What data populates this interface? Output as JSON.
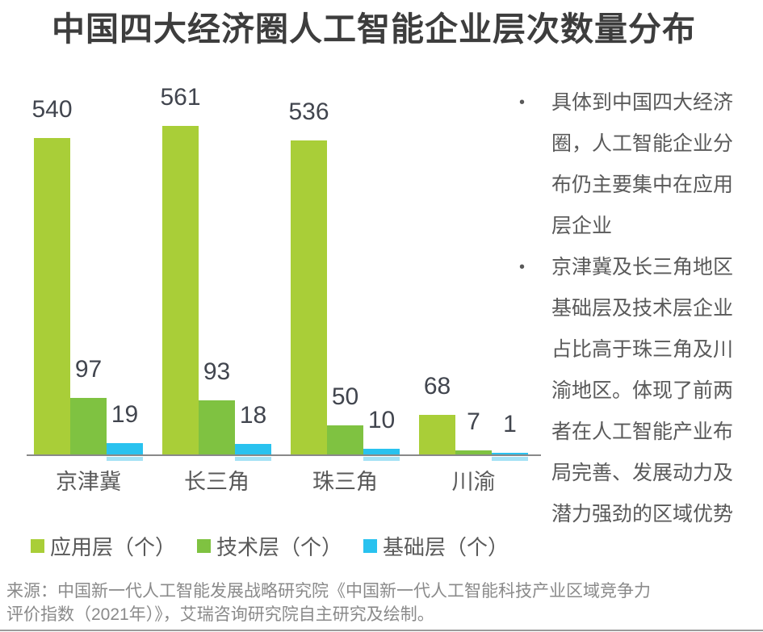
{
  "title": "中国四大经济圈人工智能企业层次数量分布",
  "chart_data": {
    "type": "bar",
    "title": "中国四大经济圈人工智能企业层次数量分布",
    "categories": [
      "京津冀",
      "长三角",
      "珠三角",
      "川渝"
    ],
    "series": [
      {
        "name": "应用层（个）",
        "color": "#a9ce38",
        "values": [
          540,
          561,
          536,
          68
        ]
      },
      {
        "name": "技术层（个）",
        "color": "#7fc241",
        "values": [
          97,
          93,
          50,
          7
        ]
      },
      {
        "name": "基础层（个）",
        "color": "#29c2ef",
        "values": [
          19,
          18,
          10,
          1
        ]
      }
    ],
    "xlabel": "",
    "ylabel": "",
    "ylim": [
      0,
      600
    ],
    "grid": false,
    "legend_position": "bottom",
    "value_labels": true,
    "axis_line_color": "#898989"
  },
  "notes": [
    "具体到中国四大经济圈，人工智能企业分布仍主要集中在应用层企业",
    "京津冀及长三角地区基础层及技术层企业占比高于珠三角及川渝地区。体现了前两者在人工智能产业布局完善、发展动力及潜力强劲的区域优势"
  ],
  "source_lines": [
    "来源：中国新一代人工智能发展战略研究院《中国新一代人工智能科技产业区域竞争力",
    "评价指数（2021年）》，艾瑞咨询研究院自主研究及绘制。"
  ],
  "colors": {
    "title_text": "#3d3d3d",
    "value_label_text": "#41454e",
    "axis_label_text": "#595959",
    "note_text": "#595959",
    "source_text": "#8a8a8a",
    "series_app": "#a9ce38",
    "series_tech": "#7fc241",
    "series_base": "#29c2ef"
  }
}
